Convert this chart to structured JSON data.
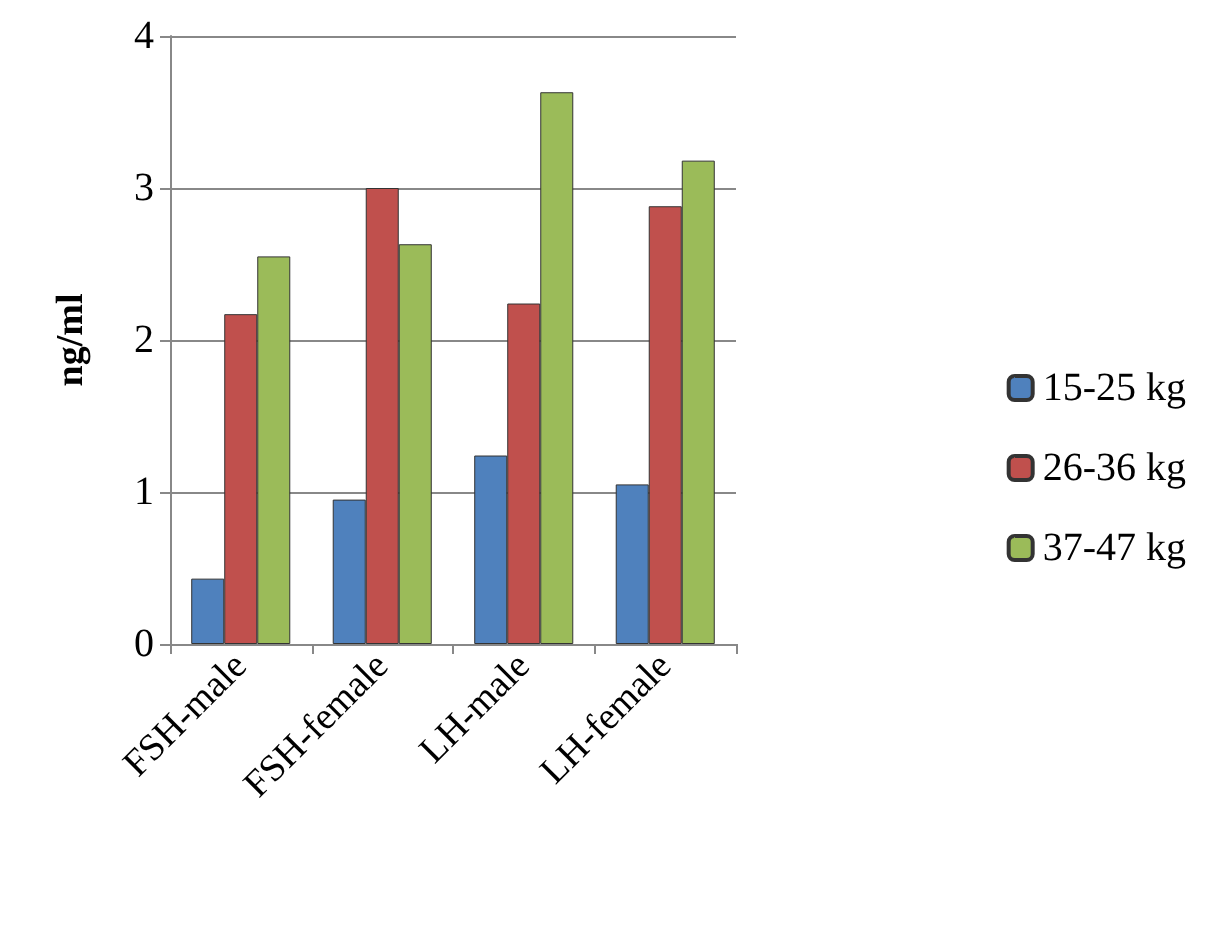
{
  "chart_data": {
    "type": "bar",
    "ylabel": "ng/ml",
    "categories": [
      "FSH-male",
      "FSH-female",
      "LH-male",
      "LH-female"
    ],
    "series": [
      {
        "name": "15-25 kg",
        "color": "#4f81bd",
        "values": [
          0.43,
          0.95,
          1.24,
          1.05
        ]
      },
      {
        "name": "26-36 kg",
        "color": "#c0504d",
        "values": [
          2.17,
          3.0,
          2.24,
          2.88
        ]
      },
      {
        "name": "37-47 kg",
        "color": "#9bbb59",
        "values": [
          2.55,
          2.63,
          3.63,
          3.18
        ]
      }
    ],
    "ylim": [
      0,
      4
    ],
    "yticks": [
      0,
      1,
      2,
      3,
      4
    ],
    "grid": "y",
    "legend": "right"
  }
}
